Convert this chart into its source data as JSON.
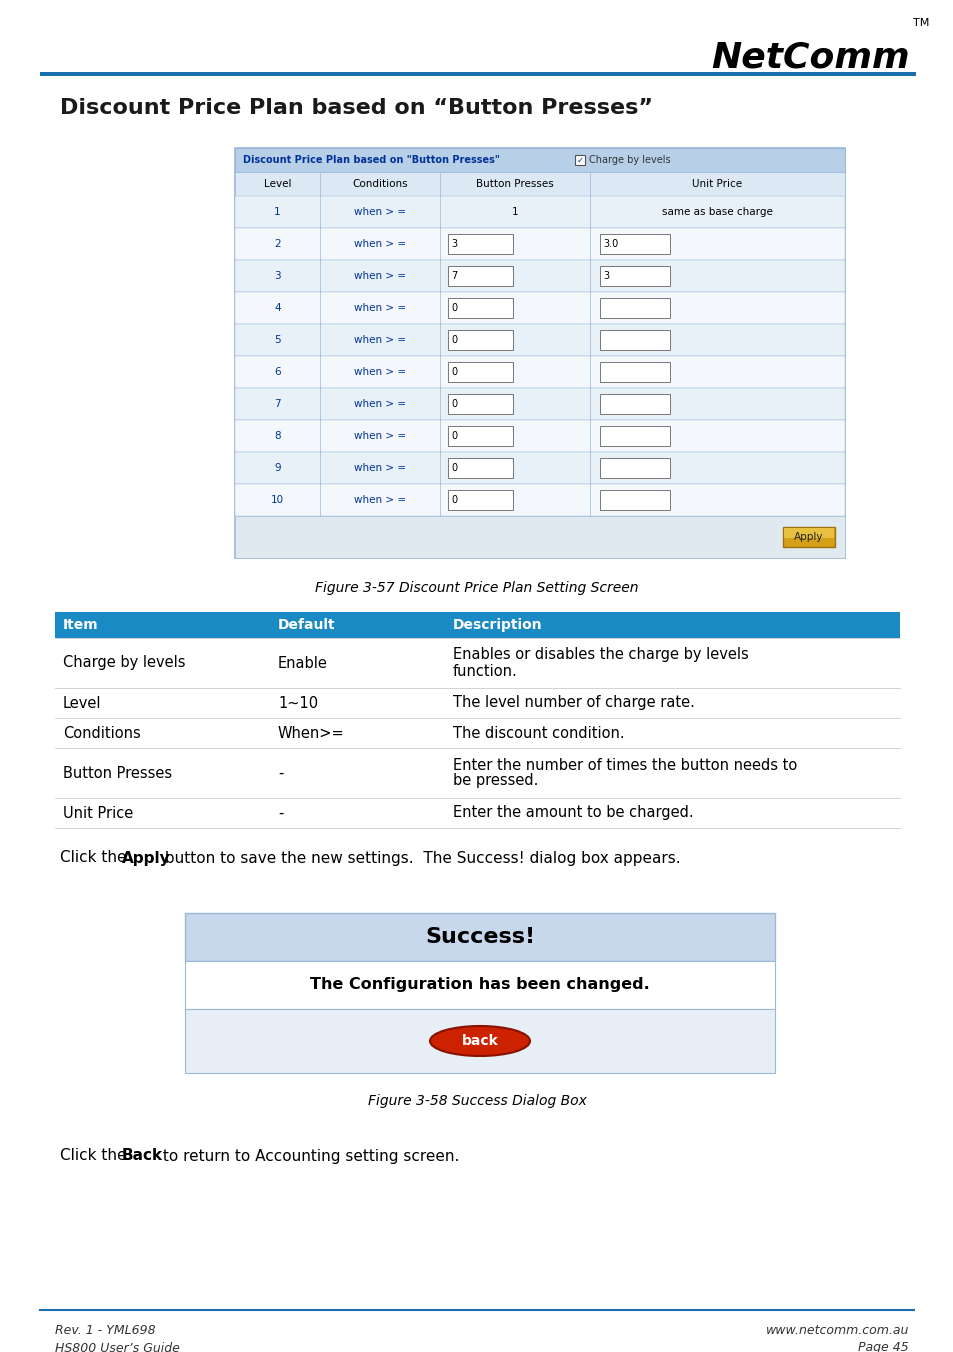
{
  "title": "Discount Price Plan based on “Button Presses”",
  "ui_header_text": "Discount Price Plan based on \"Button Presses\"",
  "ui_checkbox_text": "Charge by levels",
  "ui_col_headers": [
    "Level",
    "Conditions",
    "Button Presses",
    "Unit Price"
  ],
  "ui_rows": [
    {
      "level": "1",
      "cond": "when > =",
      "bp": "1",
      "bp_box": false,
      "up": "same as base charge",
      "up_box": false
    },
    {
      "level": "2",
      "cond": "when > =",
      "bp": "3",
      "bp_box": true,
      "up": "3.0",
      "up_box": true
    },
    {
      "level": "3",
      "cond": "when > =",
      "bp": "7",
      "bp_box": true,
      "up": "3",
      "up_box": true
    },
    {
      "level": "4",
      "cond": "when > =",
      "bp": "0",
      "bp_box": true,
      "up": "",
      "up_box": true
    },
    {
      "level": "5",
      "cond": "when > =",
      "bp": "0",
      "bp_box": true,
      "up": "",
      "up_box": true
    },
    {
      "level": "6",
      "cond": "when > =",
      "bp": "0",
      "bp_box": true,
      "up": "",
      "up_box": true
    },
    {
      "level": "7",
      "cond": "when > =",
      "bp": "0",
      "bp_box": true,
      "up": "",
      "up_box": true
    },
    {
      "level": "8",
      "cond": "when > =",
      "bp": "0",
      "bp_box": true,
      "up": "",
      "up_box": true
    },
    {
      "level": "9",
      "cond": "when > =",
      "bp": "0",
      "bp_box": true,
      "up": "",
      "up_box": true
    },
    {
      "level": "10",
      "cond": "when > =",
      "bp": "0",
      "bp_box": true,
      "up": "",
      "up_box": true
    }
  ],
  "fig_caption_1": "Figure 3-57 Discount Price Plan Setting Screen",
  "info_table_headers": [
    "Item",
    "Default",
    "Description"
  ],
  "info_table_header_bg": "#1a8ac4",
  "info_table_rows": [
    [
      "Charge by levels",
      "Enable",
      "Enables or disables the charge by levels\nfunction."
    ],
    [
      "Level",
      "1~10",
      "The level number of charge rate."
    ],
    [
      "Conditions",
      "When>=",
      "The discount condition."
    ],
    [
      "Button Presses",
      "-",
      "Enter the number of times the button needs to\nbe pressed."
    ],
    [
      "Unit Price",
      "-",
      "Enter the amount to be charged."
    ]
  ],
  "success_title": "Success!",
  "success_msg": "The Configuration has been changed.",
  "back_btn_text": "back",
  "fig_caption_2": "Figure 3-58 Success Dialog Box",
  "footer_left_1": "Rev. 1 - YML698",
  "footer_left_2": "HS800 User’s Guide",
  "footer_right_1": "www.netcomm.com.au",
  "footer_right_2": "Page 45",
  "bg_color": "#ffffff",
  "ui_outer_bg": "#dce9f5",
  "ui_header_bg": "#b8cfe8",
  "ui_col_hdr_bg": "#dce9f5",
  "ui_row_even": "#e8f0f8",
  "ui_row_odd": "#f4f8fc",
  "ui_border": "#9ab8d8",
  "apply_btn_fc": "#daa520",
  "apply_btn_ec": "#b8860b",
  "blue_line_color": "#1a6fae",
  "success_top_bg": "#c8d8ec",
  "success_mid_bg": "#ffffff",
  "success_bot_bg": "#e8eef5",
  "success_border": "#9ab8d8",
  "back_btn_color": "#cc2200"
}
